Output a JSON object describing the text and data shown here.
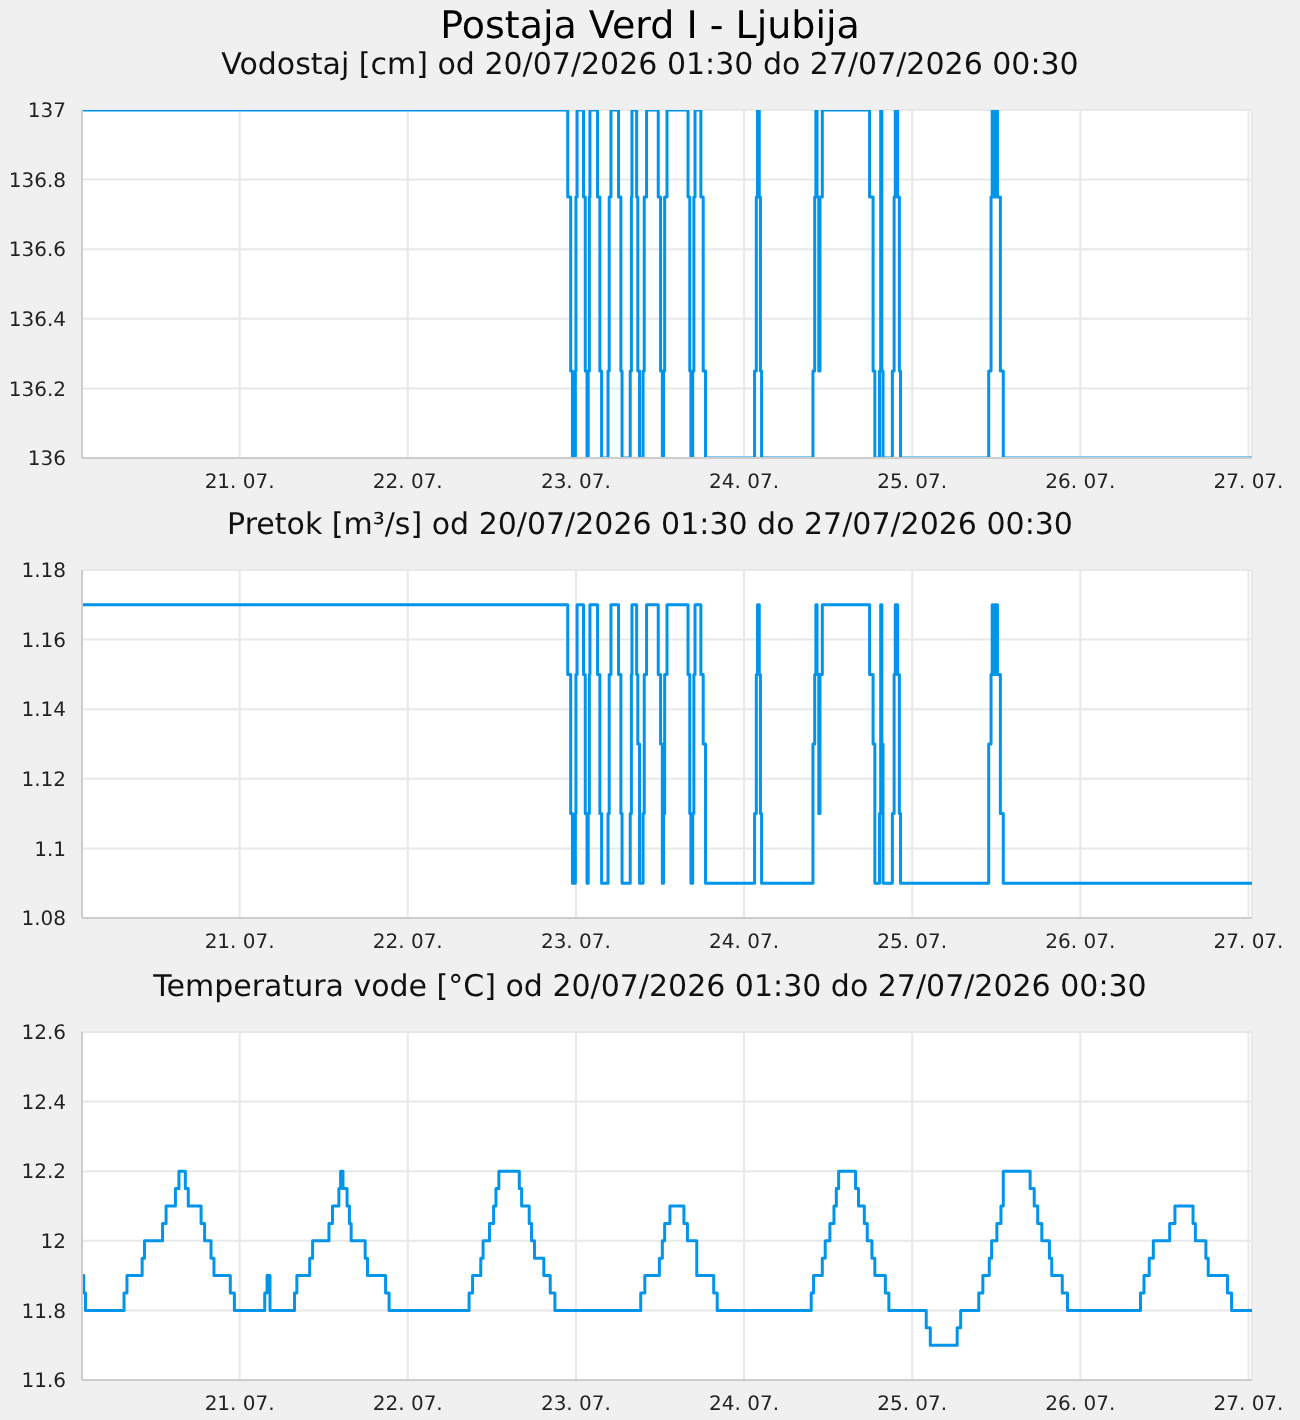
{
  "chart_data": [
    {
      "type": "step",
      "title": "Postaja Verd I - Ljubija",
      "subtitle": "Vodostaj [cm] od 20/07/2026 01:30 do 27/07/2026 00:30",
      "color": "#0095eb",
      "grid": true,
      "legend": false,
      "xlim": [
        "2026-07-20T01:30",
        "2026-07-27T00:30"
      ],
      "xticks": [
        {
          "value": "2026-07-21",
          "label": "21. 07."
        },
        {
          "value": "2026-07-22",
          "label": "22. 07."
        },
        {
          "value": "2026-07-23",
          "label": "23. 07."
        },
        {
          "value": "2026-07-24",
          "label": "24. 07."
        },
        {
          "value": "2026-07-25",
          "label": "25. 07."
        },
        {
          "value": "2026-07-26",
          "label": "26. 07."
        },
        {
          "value": "2026-07-27",
          "label": "27. 07."
        }
      ],
      "ylim": [
        136,
        137
      ],
      "yticks": [
        136,
        136.2,
        136.4,
        136.6,
        136.8,
        137
      ],
      "x": [
        "2026-07-20T01:30",
        "2026-07-22T22:50",
        "2026-07-22T23:15",
        "2026-07-22T23:30",
        "2026-07-22T23:55",
        "2026-07-23T00:00",
        "2026-07-23T00:10",
        "2026-07-23T01:05",
        "2026-07-23T01:20",
        "2026-07-23T01:35",
        "2026-07-23T01:45",
        "2026-07-23T01:55",
        "2026-07-23T02:00",
        "2026-07-23T03:05",
        "2026-07-23T03:25",
        "2026-07-23T03:40",
        "2026-07-23T04:35",
        "2026-07-23T04:45",
        "2026-07-23T05:00",
        "2026-07-23T06:05",
        "2026-07-23T06:25",
        "2026-07-23T06:35",
        "2026-07-23T07:45",
        "2026-07-23T07:55",
        "2026-07-23T08:00",
        "2026-07-23T08:40",
        "2026-07-23T08:50",
        "2026-07-23T09:05",
        "2026-07-23T09:35",
        "2026-07-23T09:45",
        "2026-07-23T10:05",
        "2026-07-23T11:45",
        "2026-07-23T12:05",
        "2026-07-23T12:20",
        "2026-07-23T12:30",
        "2026-07-23T12:40",
        "2026-07-23T13:00",
        "2026-07-23T16:00",
        "2026-07-23T16:15",
        "2026-07-23T16:25",
        "2026-07-23T16:40",
        "2026-07-23T16:50",
        "2026-07-23T17:00",
        "2026-07-23T17:50",
        "2026-07-23T18:10",
        "2026-07-23T18:30",
        "2026-07-24T01:30",
        "2026-07-24T01:45",
        "2026-07-24T01:55",
        "2026-07-24T02:10",
        "2026-07-24T02:20",
        "2026-07-24T02:30",
        "2026-07-24T09:50",
        "2026-07-24T10:05",
        "2026-07-24T10:15",
        "2026-07-24T10:25",
        "2026-07-24T10:40",
        "2026-07-24T10:50",
        "2026-07-24T11:10",
        "2026-07-24T17:55",
        "2026-07-24T18:25",
        "2026-07-24T18:40",
        "2026-07-24T19:20",
        "2026-07-24T19:30",
        "2026-07-24T19:40",
        "2026-07-24T19:50",
        "2026-07-24T21:10",
        "2026-07-24T21:25",
        "2026-07-24T21:35",
        "2026-07-24T21:55",
        "2026-07-24T22:10",
        "2026-07-24T22:20",
        "2026-07-25T10:55",
        "2026-07-25T11:15",
        "2026-07-25T11:25",
        "2026-07-25T11:35",
        "2026-07-25T11:50",
        "2026-07-25T12:10",
        "2026-07-25T12:35",
        "2026-07-25T13:00",
        "2026-07-27T00:30"
      ],
      "values": [
        137,
        136.75,
        136.25,
        136,
        136.25,
        136.75,
        137,
        136.75,
        136.25,
        136,
        136.25,
        136.75,
        137,
        136.75,
        136.25,
        136,
        136.25,
        136.75,
        137,
        136.75,
        136.25,
        136,
        136.25,
        136.75,
        137,
        136.75,
        136.25,
        136,
        136.25,
        136.75,
        137,
        136.75,
        136.25,
        136,
        136.25,
        136.75,
        137,
        136.75,
        136.25,
        136,
        136.25,
        136.75,
        137,
        136.75,
        136.25,
        136,
        136.25,
        136.75,
        137,
        136.75,
        136.25,
        136,
        136.25,
        136.75,
        137,
        136.75,
        136.25,
        136.75,
        137,
        136.75,
        136.25,
        136,
        136.25,
        137,
        136.25,
        136,
        136.25,
        136.75,
        137,
        136.75,
        136.25,
        136,
        136.25,
        136.75,
        137,
        136.75,
        137,
        136.75,
        136.25,
        136,
        136
      ]
    },
    {
      "type": "step",
      "subtitle": "Pretok [m³/s] od 20/07/2026 01:30 do 27/07/2026 00:30",
      "color": "#0095eb",
      "grid": true,
      "legend": false,
      "xlim": [
        "2026-07-20T01:30",
        "2026-07-27T00:30"
      ],
      "xticks": [
        {
          "value": "2026-07-21",
          "label": "21. 07."
        },
        {
          "value": "2026-07-22",
          "label": "22. 07."
        },
        {
          "value": "2026-07-23",
          "label": "23. 07."
        },
        {
          "value": "2026-07-24",
          "label": "24. 07."
        },
        {
          "value": "2026-07-25",
          "label": "25. 07."
        },
        {
          "value": "2026-07-26",
          "label": "26. 07."
        },
        {
          "value": "2026-07-27",
          "label": "27. 07."
        }
      ],
      "ylim": [
        1.08,
        1.18
      ],
      "yticks": [
        1.08,
        1.1,
        1.12,
        1.14,
        1.16,
        1.18
      ],
      "x": [
        "2026-07-20T01:30",
        "2026-07-22T22:50",
        "2026-07-22T23:15",
        "2026-07-22T23:30",
        "2026-07-22T23:55",
        "2026-07-23T00:00",
        "2026-07-23T00:10",
        "2026-07-23T01:05",
        "2026-07-23T01:20",
        "2026-07-23T01:35",
        "2026-07-23T01:45",
        "2026-07-23T01:55",
        "2026-07-23T02:00",
        "2026-07-23T03:05",
        "2026-07-23T03:25",
        "2026-07-23T03:40",
        "2026-07-23T04:35",
        "2026-07-23T04:45",
        "2026-07-23T05:00",
        "2026-07-23T06:05",
        "2026-07-23T06:25",
        "2026-07-23T06:35",
        "2026-07-23T07:45",
        "2026-07-23T07:55",
        "2026-07-23T08:00",
        "2026-07-23T08:40",
        "2026-07-23T08:50",
        "2026-07-23T09:05",
        "2026-07-23T09:35",
        "2026-07-23T09:45",
        "2026-07-23T10:05",
        "2026-07-23T11:45",
        "2026-07-23T12:05",
        "2026-07-23T12:20",
        "2026-07-23T12:30",
        "2026-07-23T12:40",
        "2026-07-23T13:00",
        "2026-07-23T16:00",
        "2026-07-23T16:15",
        "2026-07-23T16:25",
        "2026-07-23T16:40",
        "2026-07-23T16:50",
        "2026-07-23T17:00",
        "2026-07-23T17:50",
        "2026-07-23T18:10",
        "2026-07-23T18:30",
        "2026-07-24T01:30",
        "2026-07-24T01:45",
        "2026-07-24T01:55",
        "2026-07-24T02:10",
        "2026-07-24T02:20",
        "2026-07-24T02:30",
        "2026-07-24T09:50",
        "2026-07-24T10:05",
        "2026-07-24T10:15",
        "2026-07-24T10:25",
        "2026-07-24T10:40",
        "2026-07-24T10:50",
        "2026-07-24T11:10",
        "2026-07-24T17:55",
        "2026-07-24T18:25",
        "2026-07-24T18:40",
        "2026-07-24T19:20",
        "2026-07-24T19:30",
        "2026-07-24T19:40",
        "2026-07-24T19:50",
        "2026-07-24T21:10",
        "2026-07-24T21:25",
        "2026-07-24T21:35",
        "2026-07-24T21:55",
        "2026-07-24T22:10",
        "2026-07-24T22:20",
        "2026-07-25T10:55",
        "2026-07-25T11:15",
        "2026-07-25T11:25",
        "2026-07-25T11:35",
        "2026-07-25T11:50",
        "2026-07-25T12:10",
        "2026-07-25T12:35",
        "2026-07-25T13:00",
        "2026-07-27T00:30"
      ],
      "values": [
        1.17,
        1.15,
        1.11,
        1.09,
        1.11,
        1.15,
        1.17,
        1.15,
        1.11,
        1.09,
        1.11,
        1.15,
        1.17,
        1.15,
        1.11,
        1.09,
        1.11,
        1.15,
        1.17,
        1.15,
        1.11,
        1.09,
        1.11,
        1.15,
        1.17,
        1.15,
        1.13,
        1.09,
        1.11,
        1.15,
        1.17,
        1.15,
        1.13,
        1.09,
        1.11,
        1.15,
        1.17,
        1.15,
        1.11,
        1.09,
        1.11,
        1.15,
        1.17,
        1.15,
        1.13,
        1.09,
        1.11,
        1.15,
        1.17,
        1.15,
        1.11,
        1.09,
        1.13,
        1.15,
        1.17,
        1.15,
        1.11,
        1.15,
        1.17,
        1.15,
        1.13,
        1.09,
        1.11,
        1.17,
        1.13,
        1.09,
        1.11,
        1.15,
        1.17,
        1.15,
        1.11,
        1.09,
        1.13,
        1.15,
        1.17,
        1.15,
        1.17,
        1.15,
        1.11,
        1.09,
        1.09
      ]
    },
    {
      "type": "step",
      "subtitle": "Temperatura vode [°C] od 20/07/2026 01:30 do 27/07/2026 00:30",
      "color": "#0095eb",
      "grid": true,
      "legend": false,
      "xlim": [
        "2026-07-20T01:30",
        "2026-07-27T00:30"
      ],
      "xticks": [
        {
          "value": "2026-07-21",
          "label": "21. 07."
        },
        {
          "value": "2026-07-22",
          "label": "22. 07."
        },
        {
          "value": "2026-07-23",
          "label": "23. 07."
        },
        {
          "value": "2026-07-24",
          "label": "24. 07."
        },
        {
          "value": "2026-07-25",
          "label": "25. 07."
        },
        {
          "value": "2026-07-26",
          "label": "26. 07."
        },
        {
          "value": "2026-07-27",
          "label": "27. 07."
        }
      ],
      "ylim": [
        11.6,
        12.6
      ],
      "yticks": [
        11.6,
        11.8,
        12,
        12.2,
        12.4,
        12.6
      ],
      "x": [
        "2026-07-20T01:30",
        "2026-07-20T01:45",
        "2026-07-20T02:00",
        "2026-07-20T07:30",
        "2026-07-20T07:55",
        "2026-07-20T10:05",
        "2026-07-20T10:25",
        "2026-07-20T13:00",
        "2026-07-20T13:30",
        "2026-07-20T14:50",
        "2026-07-20T15:20",
        "2026-07-20T16:15",
        "2026-07-20T16:40",
        "2026-07-20T18:30",
        "2026-07-20T19:00",
        "2026-07-20T19:55",
        "2026-07-20T20:20",
        "2026-07-20T22:40",
        "2026-07-20T23:15",
        "2026-07-21T03:35",
        "2026-07-21T03:55",
        "2026-07-21T04:20",
        "2026-07-21T07:50",
        "2026-07-21T08:10",
        "2026-07-21T10:00",
        "2026-07-21T10:25",
        "2026-07-21T12:45",
        "2026-07-21T13:15",
        "2026-07-21T14:10",
        "2026-07-21T14:25",
        "2026-07-21T14:45",
        "2026-07-21T15:20",
        "2026-07-21T15:40",
        "2026-07-21T15:55",
        "2026-07-21T17:55",
        "2026-07-21T18:15",
        "2026-07-21T20:50",
        "2026-07-21T21:20",
        "2026-07-22T08:45",
        "2026-07-22T09:15",
        "2026-07-22T10:25",
        "2026-07-22T10:45",
        "2026-07-22T11:40",
        "2026-07-22T12:15",
        "2026-07-22T12:35",
        "2026-07-22T13:00",
        "2026-07-22T15:55",
        "2026-07-22T16:15",
        "2026-07-22T17:20",
        "2026-07-22T17:40",
        "2026-07-22T18:05",
        "2026-07-22T19:25",
        "2026-07-22T20:20",
        "2026-07-22T21:00",
        "2026-07-23T09:15",
        "2026-07-23T09:50",
        "2026-07-23T11:55",
        "2026-07-23T12:20",
        "2026-07-23T12:40",
        "2026-07-23T13:25",
        "2026-07-23T15:25",
        "2026-07-23T15:55",
        "2026-07-23T17:15",
        "2026-07-23T19:40",
        "2026-07-23T20:10",
        "2026-07-24T09:35",
        "2026-07-24T09:55",
        "2026-07-24T11:10",
        "2026-07-24T11:35",
        "2026-07-24T12:15",
        "2026-07-24T12:50",
        "2026-07-24T13:10",
        "2026-07-24T13:30",
        "2026-07-24T15:55",
        "2026-07-24T16:20",
        "2026-07-24T17:10",
        "2026-07-24T17:35",
        "2026-07-24T18:15",
        "2026-07-24T18:40",
        "2026-07-24T20:10",
        "2026-07-24T20:40",
        "2026-07-25T02:00",
        "2026-07-25T02:35",
        "2026-07-25T06:25",
        "2026-07-25T06:55",
        "2026-07-25T09:30",
        "2026-07-25T10:05",
        "2026-07-25T11:00",
        "2026-07-25T11:20",
        "2026-07-25T12:05",
        "2026-07-25T12:40",
        "2026-07-25T13:00",
        "2026-07-25T16:50",
        "2026-07-25T17:25",
        "2026-07-25T17:55",
        "2026-07-25T18:30",
        "2026-07-25T19:35",
        "2026-07-25T19:55",
        "2026-07-25T21:25",
        "2026-07-25T22:10",
        "2026-07-26T08:35",
        "2026-07-26T09:05",
        "2026-07-26T09:50",
        "2026-07-26T10:25",
        "2026-07-26T12:45",
        "2026-07-26T13:30",
        "2026-07-26T16:05",
        "2026-07-26T16:25",
        "2026-07-26T17:55",
        "2026-07-26T18:15",
        "2026-07-26T21:00",
        "2026-07-26T21:35",
        "2026-07-27T00:30"
      ],
      "values": [
        11.9,
        11.85,
        11.8,
        11.85,
        11.9,
        11.95,
        12,
        12.05,
        12.1,
        12.15,
        12.2,
        12.15,
        12.1,
        12.05,
        12,
        11.95,
        11.9,
        11.85,
        11.8,
        11.85,
        11.9,
        11.8,
        11.85,
        11.9,
        11.95,
        12,
        12.05,
        12.1,
        12.15,
        12.2,
        12.15,
        12.1,
        12.05,
        12,
        11.95,
        11.9,
        11.85,
        11.8,
        11.85,
        11.9,
        11.95,
        12,
        12.05,
        12.1,
        12.15,
        12.2,
        12.15,
        12.1,
        12.05,
        12,
        11.95,
        11.9,
        11.85,
        11.8,
        11.85,
        11.9,
        11.95,
        12,
        12.05,
        12.1,
        12.05,
        12,
        11.9,
        11.85,
        11.8,
        11.85,
        11.9,
        11.95,
        12,
        12.05,
        12.1,
        12.15,
        12.2,
        12.15,
        12.1,
        12.05,
        12,
        11.95,
        11.9,
        11.85,
        11.8,
        11.75,
        11.7,
        11.75,
        11.8,
        11.85,
        11.9,
        11.95,
        12,
        12.05,
        12.1,
        12.2,
        12.15,
        12.1,
        12.05,
        12,
        11.95,
        11.9,
        11.85,
        11.8,
        11.85,
        11.9,
        11.95,
        12,
        12.05,
        12.1,
        12.05,
        12,
        11.95,
        11.9,
        11.85,
        11.8,
        11.8
      ]
    }
  ]
}
